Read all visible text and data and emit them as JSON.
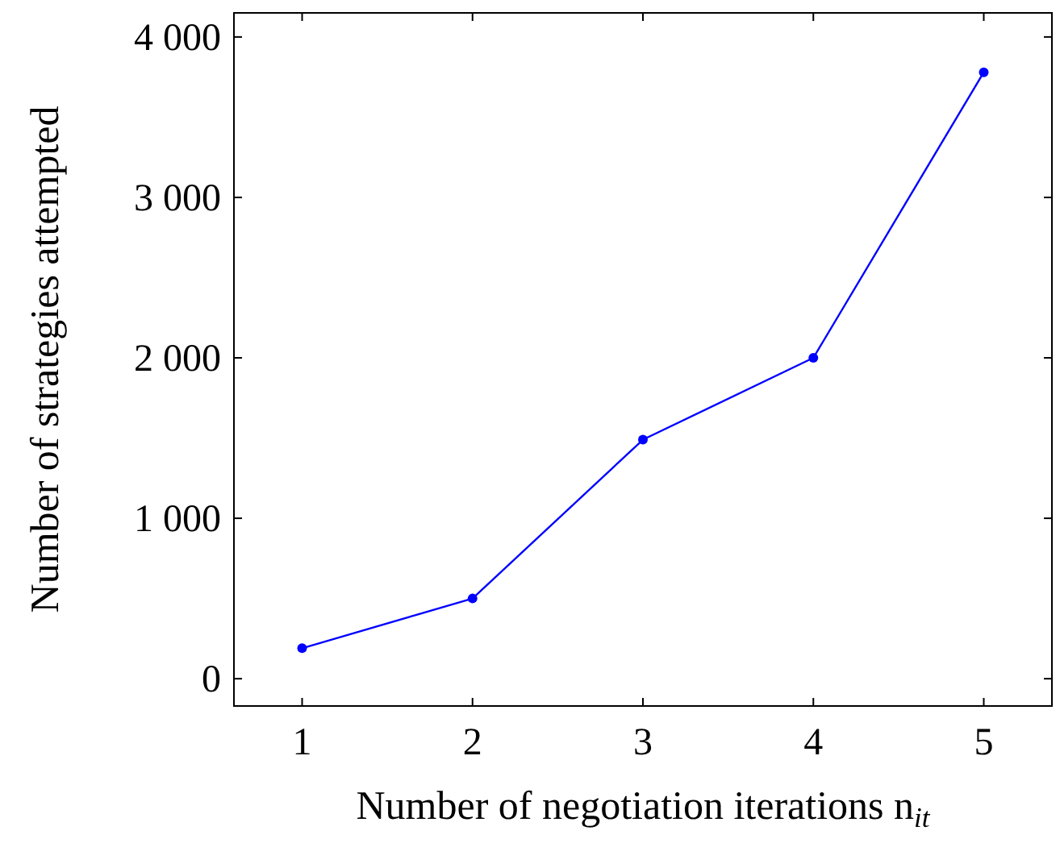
{
  "chart_data": {
    "type": "line",
    "xlabel": "Number of negotiation iterations n$_{it}$",
    "ylabel": "Number of strategies attempted",
    "x": [
      1,
      2,
      3,
      4,
      5
    ],
    "series": [
      {
        "color": "#0000ff",
        "values": [
          190,
          500,
          1490,
          2000,
          3780
        ]
      }
    ],
    "xlim": [
      0.6,
      5.4
    ],
    "xticks": [
      1,
      2,
      3,
      4,
      5
    ],
    "ylim": [
      -170,
      4150
    ],
    "yticks": [
      0,
      {
        "value": 1000,
        "label": "1 000"
      },
      {
        "value": 2000,
        "label": "2 000"
      },
      {
        "value": 3000,
        "label": "3 000"
      },
      {
        "value": 4000,
        "label": "4 000"
      }
    ],
    "marker": "circle",
    "line_style": "solid"
  }
}
